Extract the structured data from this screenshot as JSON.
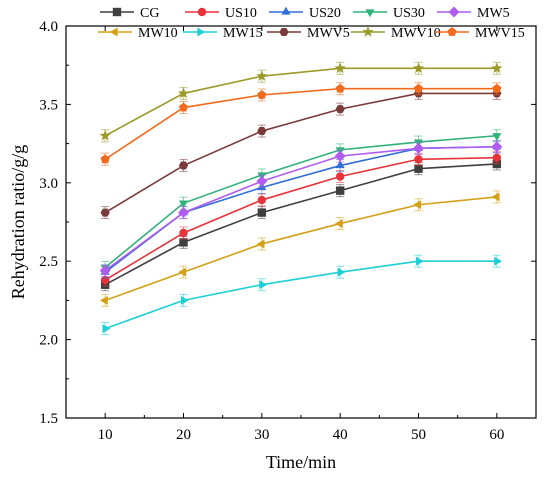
{
  "chart_data": {
    "type": "line",
    "title": "",
    "xlabel": "Time/min",
    "ylabel": "Rehydration ratio/g/g",
    "x": [
      10,
      20,
      30,
      40,
      50,
      60
    ],
    "xlim": [
      5,
      65
    ],
    "ylim": [
      1.5,
      4.0
    ],
    "x_ticks": [
      "10",
      "20",
      "30",
      "40",
      "50",
      "60"
    ],
    "y_ticks": [
      "1.5",
      "2.0",
      "2.5",
      "3.0",
      "3.5",
      "4.0"
    ],
    "grid": false,
    "error_bars": true,
    "legend_position": "top",
    "series": [
      {
        "name": "CG",
        "color": "#3f3f3f",
        "marker": "square",
        "values": [
          2.35,
          2.62,
          2.81,
          2.95,
          3.09,
          3.12
        ]
      },
      {
        "name": "US10",
        "color": "#e8333a",
        "marker": "circle",
        "values": [
          2.38,
          2.68,
          2.89,
          3.04,
          3.15,
          3.16
        ]
      },
      {
        "name": "US20",
        "color": "#2f6fd6",
        "marker": "triangle-up",
        "values": [
          2.43,
          2.81,
          2.97,
          3.11,
          3.22,
          3.23
        ]
      },
      {
        "name": "US30",
        "color": "#2fb27a",
        "marker": "triangle-down",
        "values": [
          2.46,
          2.87,
          3.05,
          3.21,
          3.26,
          3.3
        ]
      },
      {
        "name": "MW5",
        "color": "#b05cf0",
        "marker": "diamond",
        "values": [
          2.44,
          2.81,
          3.01,
          3.17,
          3.22,
          3.23
        ]
      },
      {
        "name": "MW10",
        "color": "#d4a017",
        "marker": "triangle-left",
        "values": [
          2.25,
          2.43,
          2.61,
          2.74,
          2.86,
          2.91
        ]
      },
      {
        "name": "MW15",
        "color": "#1ecfd6",
        "marker": "triangle-right",
        "values": [
          2.07,
          2.25,
          2.35,
          2.43,
          2.5,
          2.5
        ]
      },
      {
        "name": "MWV5",
        "color": "#7a3b3b",
        "marker": "hexagon",
        "values": [
          2.81,
          3.11,
          3.33,
          3.47,
          3.57,
          3.57
        ]
      },
      {
        "name": "MWV10",
        "color": "#9c9a28",
        "marker": "star",
        "values": [
          3.3,
          3.57,
          3.68,
          3.73,
          3.73,
          3.73
        ]
      },
      {
        "name": "MWV15",
        "color": "#f26b1d",
        "marker": "pentagon",
        "values": [
          3.15,
          3.48,
          3.56,
          3.6,
          3.6,
          3.6
        ]
      }
    ]
  }
}
